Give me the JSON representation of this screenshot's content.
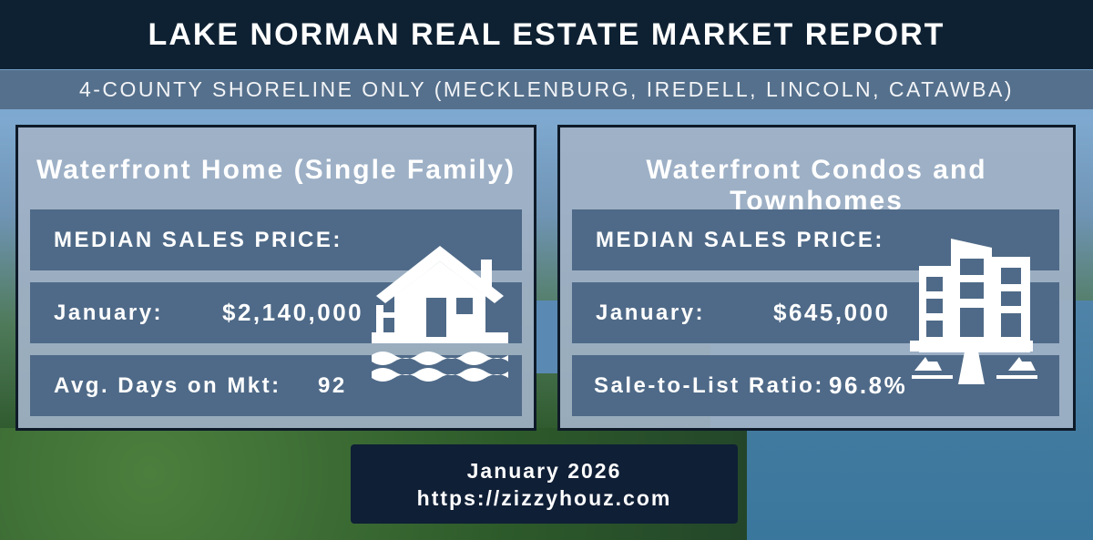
{
  "header": {
    "title": "LAKE NORMAN REAL ESTATE MARKET REPORT",
    "subtitle": "4-COUNTY SHORELINE ONLY (MECKLENBURG, IREDELL, LINCOLN, CATAWBA)"
  },
  "panels": [
    {
      "title": "Waterfront Home (Single Family)",
      "heading": "MEDIAN SALES PRICE:",
      "month_label": "January:",
      "price": "$2,140,000",
      "stat_label": "Avg. Days on Mkt:",
      "stat_value": "92",
      "icon": "waterfront-house-icon"
    },
    {
      "title": "Waterfront Condos and Townhomes",
      "heading": "MEDIAN SALES PRICE:",
      "month_label": "January:",
      "price": "$645,000",
      "stat_label": "Sale-to-List Ratio:",
      "stat_value": "96.8%",
      "icon": "condo-building-boats-icon"
    }
  ],
  "footer": {
    "date": "January 2026",
    "url": "https://zizzyhouz.com"
  },
  "colors": {
    "title_bar": "#0e2133",
    "subtitle_bar": "#55708c",
    "panel": "#a0b2c6",
    "row": "#4f6a88",
    "footer": "#0f1f36"
  }
}
